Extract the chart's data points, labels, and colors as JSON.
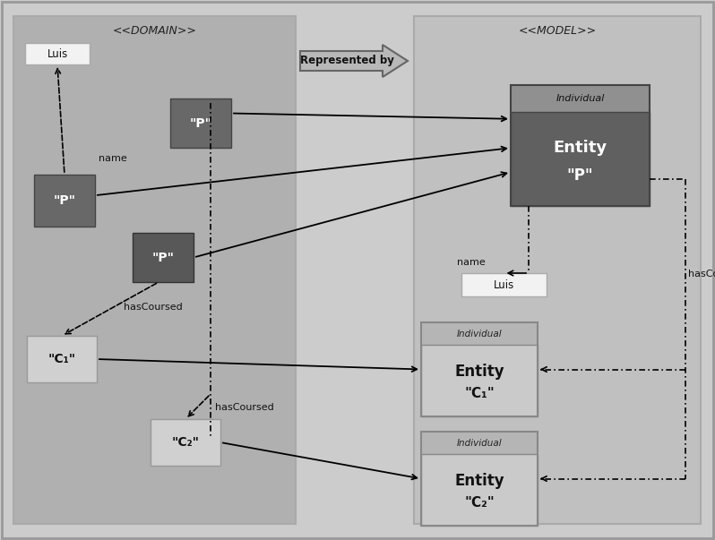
{
  "bg_outer": "#cccccc",
  "bg_domain": "#b0b0b0",
  "bg_model": "#c0c0c0",
  "box_dark_p": "#686868",
  "box_dark_p2": "#585858",
  "box_light": "#d0d0d0",
  "box_white": "#f2f2f2",
  "text_white": "#ffffff",
  "text_black": "#000000",
  "domain_label": "<<DOMAIN>>",
  "model_label": "<<MODEL>>",
  "rep_by": "Represented by",
  "luis_label": "Luis",
  "name_label": "name",
  "hasCoursed_label": "hasCoursed",
  "individual_label": "Individual",
  "entity_p_l1": "Entity",
  "entity_p_l2": "\"P\"",
  "entity_c1_l1": "Entity",
  "entity_c1_l2": "\"C₁\"",
  "entity_c2_l1": "Entity",
  "entity_c2_l2": "\"C₂\""
}
